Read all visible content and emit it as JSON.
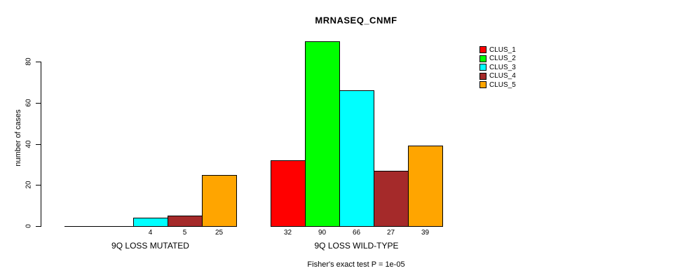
{
  "chart_data": {
    "type": "bar",
    "title": "MRNASEQ_CNMF",
    "xlabel": "",
    "ylabel": "number of cases",
    "ylim": [
      0,
      92
    ],
    "yticks": [
      0,
      20,
      40,
      60,
      80
    ],
    "grid": false,
    "legend_position": "top-right",
    "categories": [
      "9Q LOSS MUTATED",
      "9Q LOSS WILD-TYPE"
    ],
    "series": [
      {
        "name": "CLUS_1",
        "color": "#FF0000",
        "values": [
          0,
          32
        ]
      },
      {
        "name": "CLUS_2",
        "color": "#00FF00",
        "values": [
          0,
          90
        ]
      },
      {
        "name": "CLUS_3",
        "color": "#00FFFF",
        "values": [
          4,
          66
        ]
      },
      {
        "name": "CLUS_4",
        "color": "#A52A2A",
        "values": [
          5,
          27
        ]
      },
      {
        "name": "CLUS_5",
        "color": "#FFA500",
        "values": [
          25,
          39
        ]
      }
    ],
    "bar_value_labels_shown": true,
    "zero_value_labels_hidden": true,
    "annotation": "Fisher's exact test P = 1e-05",
    "axis_color": "#000000",
    "bar_border_color": "#000000"
  }
}
